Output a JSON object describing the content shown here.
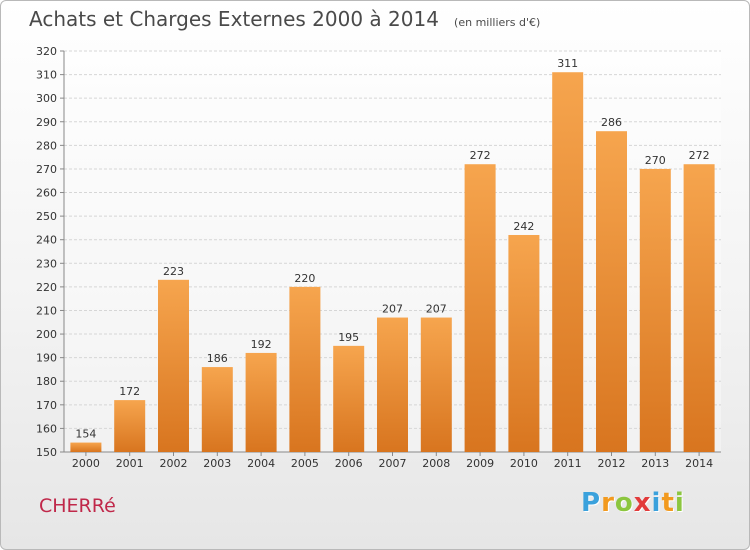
{
  "chart_data": {
    "type": "bar",
    "title": "Achats et Charges Externes 2000 à 2014",
    "subtitle": "(en milliers d'€)",
    "categories": [
      "2000",
      "2001",
      "2002",
      "2003",
      "2004",
      "2005",
      "2006",
      "2007",
      "2008",
      "2009",
      "2010",
      "2011",
      "2012",
      "2013",
      "2014"
    ],
    "values": [
      154,
      172,
      223,
      186,
      192,
      220,
      195,
      207,
      207,
      272,
      242,
      311,
      286,
      270,
      272
    ],
    "ylim": [
      150,
      320
    ],
    "yticks": [
      150,
      160,
      170,
      180,
      190,
      200,
      210,
      220,
      230,
      240,
      250,
      260,
      270,
      280,
      290,
      300,
      310,
      320
    ],
    "grid": true,
    "colors": {
      "bar_top": "#f6a54e",
      "bar_bottom": "#d8751f",
      "grid": "#d6d6d6"
    }
  },
  "commune": "CHERRé",
  "logo": {
    "letters": [
      "P",
      "r",
      "o",
      "x",
      "i",
      "t",
      "i"
    ],
    "colors": [
      "#3aa1dc",
      "#f29a1f",
      "#8cc63f",
      "#e23b3b",
      "#3aa1dc",
      "#f29a1f",
      "#8cc63f"
    ]
  }
}
